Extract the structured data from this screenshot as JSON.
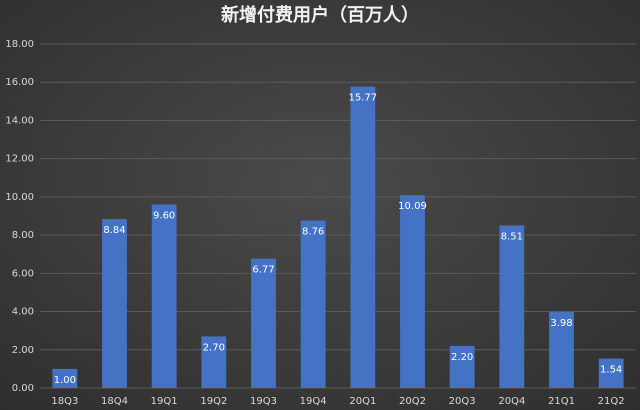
{
  "chart_data": {
    "type": "bar",
    "title": "新增付费用户（百万人）",
    "categories": [
      "18Q3",
      "18Q4",
      "19Q1",
      "19Q2",
      "19Q3",
      "19Q4",
      "20Q1",
      "20Q2",
      "20Q3",
      "20Q4",
      "21Q1",
      "21Q2"
    ],
    "values": [
      1.0,
      8.84,
      9.6,
      2.7,
      6.77,
      8.76,
      15.77,
      10.09,
      2.2,
      8.51,
      3.98,
      1.54
    ],
    "value_labels": [
      "1.00",
      "8.84",
      "9.60",
      "2.70",
      "6.77",
      "8.76",
      "15.77",
      "10.09",
      "2.20",
      "8.51",
      "3.98",
      "1.54"
    ],
    "color": "#4472c4",
    "ylim": [
      0,
      18
    ],
    "yticks": [
      {
        "value": 0,
        "label": "0.00"
      },
      {
        "value": 2,
        "label": "2.00"
      },
      {
        "value": 4,
        "label": "4.00"
      },
      {
        "value": 6,
        "label": "6.00"
      },
      {
        "value": 8,
        "label": "8.00"
      },
      {
        "value": 10,
        "label": "10.00"
      },
      {
        "value": 12,
        "label": "12.00"
      },
      {
        "value": 14,
        "label": "14.00"
      },
      {
        "value": 16,
        "label": "16.00"
      },
      {
        "value": 18,
        "label": "18.00"
      }
    ],
    "grid": true
  }
}
